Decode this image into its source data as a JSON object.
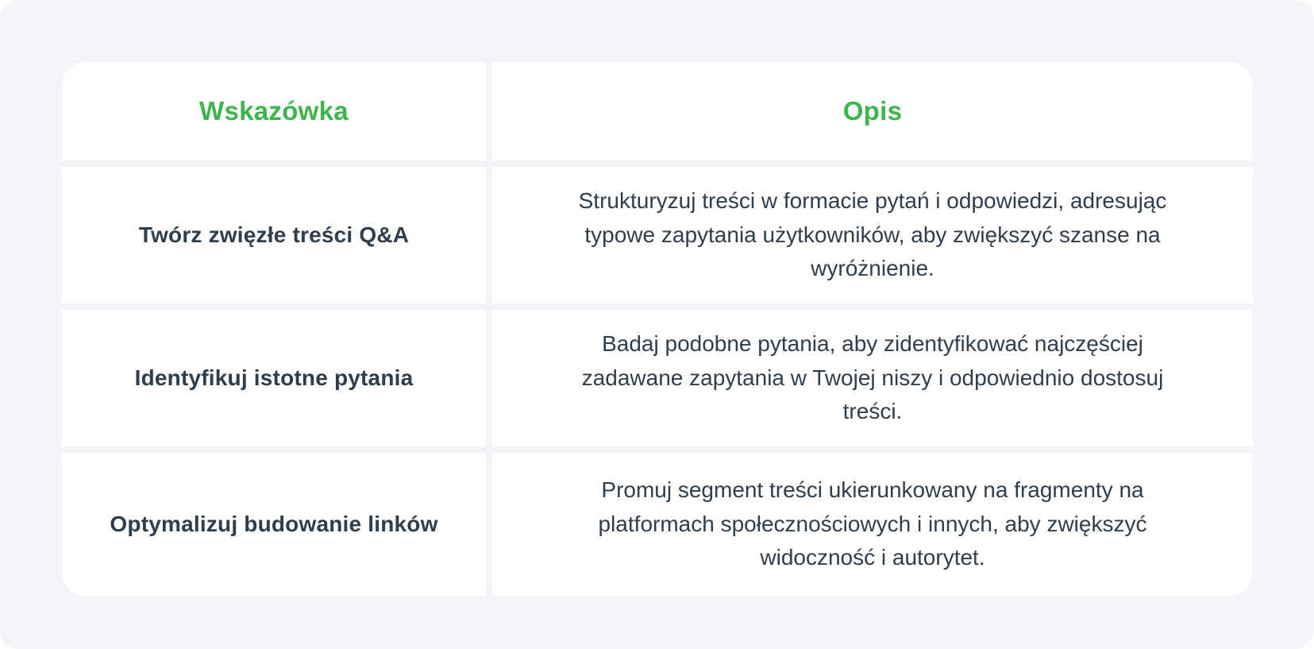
{
  "theme": {
    "accent_green": "#3DB54C",
    "text_dark": "#2F3E4D",
    "card_bg": "#F2F4F8",
    "cell_bg": "#FFFFFF",
    "page_bg": "#FFFFFF"
  },
  "table": {
    "headers": {
      "tip": "Wskazówka",
      "description": "Opis"
    },
    "rows": [
      {
        "tip": "Twórz zwięzłe treści Q&A",
        "description": "Strukturyzuj treści w formacie pytań i odpowiedzi, adresując typowe zapytania użytkowników, aby zwiększyć szanse na wyróżnienie."
      },
      {
        "tip": "Identyfikuj istotne pytania",
        "description": "Badaj podobne pytania, aby zidentyfikować najczęściej zadawane zapytania w Twojej niszy i odpowiednio dostosuj treści."
      },
      {
        "tip": "Optymalizuj budowanie linków",
        "description": "Promuj segment treści ukierunkowany na fragmenty na platformach społecznościowych i innych, aby zwiększyć widoczność i autorytet."
      }
    ]
  }
}
